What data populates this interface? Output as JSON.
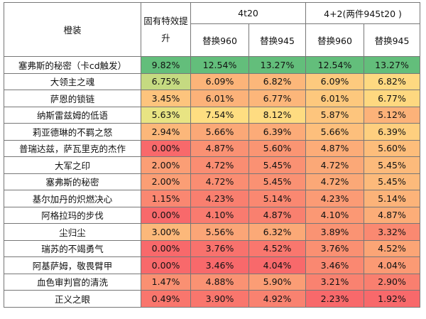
{
  "table": {
    "header": {
      "item": "橙装",
      "base": "固有特效提升",
      "group1": "4t20",
      "group2": "4+2(两件945t20 )",
      "sub": [
        "替换960",
        "替换945",
        "替换960",
        "替换945"
      ]
    },
    "rows": [
      [
        "塞弗斯的秘密（卡cd触发）",
        "9.82%",
        "12.54%",
        "13.27%",
        "12.54%",
        "13.27%"
      ],
      [
        "大领主之魂",
        "6.75%",
        "6.09%",
        "6.82%",
        "6.09%",
        "6.82%"
      ],
      [
        "萨恩的锁链",
        "3.45%",
        "6.01%",
        "6.77%",
        "6.01%",
        "6.77%"
      ],
      [
        "纳斯雷兹姆的低语",
        "5.63%",
        "7.54%",
        "8.12%",
        "5.87%",
        "5.12%"
      ],
      [
        "莉亚德琳的不羁之怒",
        "2.94%",
        "5.66%",
        "6.39%",
        "5.66%",
        "6.39%"
      ],
      [
        "普瑞达兹，萨瓦里克的杰作",
        "0.00%",
        "4.87%",
        "5.60%",
        "4.87%",
        "5.60%"
      ],
      [
        "大军之印",
        "2.00%",
        "4.72%",
        "5.45%",
        "4.72%",
        "5.45%"
      ],
      [
        "塞弗斯的秘密",
        "2.00%",
        "4.72%",
        "5.45%",
        "4.72%",
        "5.45%"
      ],
      [
        "基尔加丹的炽燃决心",
        "1.15%",
        "4.23%",
        "5.14%",
        "4.23%",
        "5.14%"
      ],
      [
        "阿格拉玛的步伐",
        "0.00%",
        "4.10%",
        "4.87%",
        "4.10%",
        "4.87%"
      ],
      [
        "尘归尘",
        "3.00%",
        "5.56%",
        "6.32%",
        "3.89%",
        "3.32%"
      ],
      [
        "瑞苏的不竭勇气",
        "0.00%",
        "3.76%",
        "4.52%",
        "3.76%",
        "4.52%"
      ],
      [
        "阿基萨姆，敬畏臂甲",
        "0.00%",
        "3.46%",
        "4.04%",
        "3.46%",
        "4.04%"
      ],
      [
        "血色审判官的清洗",
        "1.47%",
        "4.88%",
        "5.90%",
        "3.21%",
        "2.90%"
      ],
      [
        "正义之眼",
        "0.49%",
        "3.90%",
        "4.92%",
        "2.23%",
        "1.92%"
      ]
    ]
  }
}
